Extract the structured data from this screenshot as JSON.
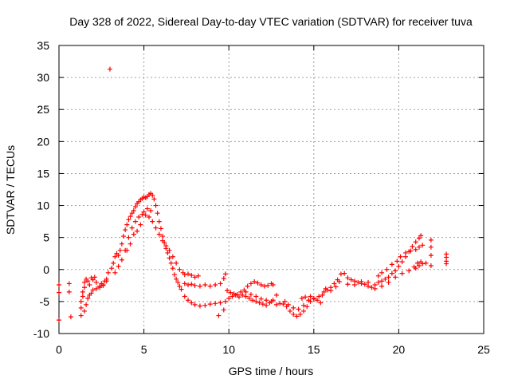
{
  "chart_data": {
    "type": "scatter",
    "title": "Day 328 of 2022, Sidereal Day-to-day VTEC variation (SDTVAR) for receiver tuva",
    "xlabel": "GPS time / hours",
    "ylabel": "SDTVAR / TECUs",
    "xlim": [
      0,
      25
    ],
    "ylim": [
      -10,
      35
    ],
    "xticks": [
      0,
      5,
      10,
      15,
      20,
      25
    ],
    "yticks": [
      -10,
      -5,
      0,
      5,
      10,
      15,
      20,
      25,
      30,
      35
    ],
    "grid": true,
    "marker": "+",
    "color": "#ff0000",
    "series": [
      {
        "name": "SDTVAR",
        "points": [
          [
            0.0,
            -2.4
          ],
          [
            0.0,
            -3.6
          ],
          [
            0.0,
            -7.9
          ],
          [
            0.6,
            -2.2
          ],
          [
            0.6,
            -3.5
          ],
          [
            0.7,
            -7.4
          ],
          [
            1.3,
            -7.2
          ],
          [
            1.3,
            -6.0
          ],
          [
            1.3,
            -5.0
          ],
          [
            1.4,
            -4.2
          ],
          [
            1.4,
            -3.5
          ],
          [
            1.5,
            -2.8
          ],
          [
            1.5,
            -2.0
          ],
          [
            1.6,
            -1.5
          ],
          [
            1.7,
            -1.8
          ],
          [
            1.8,
            -2.4
          ],
          [
            1.9,
            -1.3
          ],
          [
            2.0,
            -1.6
          ],
          [
            2.1,
            -1.2
          ],
          [
            2.2,
            -2.0
          ],
          [
            2.4,
            -2.6
          ],
          [
            2.5,
            -2.2
          ],
          [
            2.6,
            -2.5
          ],
          [
            2.7,
            -1.8
          ],
          [
            2.8,
            -1.5
          ],
          [
            2.9,
            -0.5
          ],
          [
            1.5,
            -6.5
          ],
          [
            1.6,
            -5.5
          ],
          [
            1.7,
            -4.5
          ],
          [
            1.8,
            -4.0
          ],
          [
            1.9,
            -3.7
          ],
          [
            2.0,
            -3.2
          ],
          [
            2.2,
            -3.0
          ],
          [
            2.4,
            -2.8
          ],
          [
            2.6,
            -2.4
          ],
          [
            2.8,
            -1.8
          ],
          [
            3.0,
            31.3
          ],
          [
            3.1,
            0.2
          ],
          [
            3.2,
            1.0
          ],
          [
            3.3,
            2.0
          ],
          [
            3.4,
            2.5
          ],
          [
            3.5,
            2.2
          ],
          [
            3.6,
            3.0
          ],
          [
            3.7,
            4.0
          ],
          [
            3.8,
            5.2
          ],
          [
            3.9,
            6.2
          ],
          [
            4.0,
            7.0
          ],
          [
            4.1,
            7.8
          ],
          [
            4.2,
            8.3
          ],
          [
            4.3,
            8.8
          ],
          [
            4.4,
            9.2
          ],
          [
            4.5,
            9.8
          ],
          [
            4.6,
            10.3
          ],
          [
            4.7,
            10.6
          ],
          [
            4.8,
            10.9
          ],
          [
            4.9,
            11.1
          ],
          [
            5.0,
            11.3
          ],
          [
            5.1,
            11.2
          ],
          [
            5.2,
            11.4
          ],
          [
            5.3,
            11.7
          ],
          [
            5.4,
            11.9
          ],
          [
            5.5,
            11.6
          ],
          [
            5.6,
            11.0
          ],
          [
            5.7,
            10.0
          ],
          [
            5.8,
            8.8
          ],
          [
            5.9,
            7.5
          ],
          [
            6.0,
            6.4
          ],
          [
            6.1,
            5.2
          ],
          [
            6.2,
            4.2
          ],
          [
            6.3,
            3.3
          ],
          [
            6.4,
            2.6
          ],
          [
            6.5,
            1.8
          ],
          [
            6.6,
            1.0
          ],
          [
            6.7,
            0.2
          ],
          [
            6.8,
            -0.8
          ],
          [
            6.9,
            -1.5
          ],
          [
            7.0,
            -2.0
          ],
          [
            7.1,
            -2.6
          ],
          [
            7.2,
            -3.1
          ],
          [
            3.3,
            -0.5
          ],
          [
            3.5,
            0.5
          ],
          [
            3.7,
            1.5
          ],
          [
            3.9,
            3.0
          ],
          [
            4.1,
            5.0
          ],
          [
            4.3,
            6.5
          ],
          [
            4.5,
            7.5
          ],
          [
            4.7,
            8.2
          ],
          [
            4.9,
            8.6
          ],
          [
            5.1,
            8.5
          ],
          [
            5.3,
            8.2
          ],
          [
            5.5,
            7.5
          ],
          [
            5.7,
            6.5
          ],
          [
            5.9,
            5.5
          ],
          [
            6.1,
            4.5
          ],
          [
            6.3,
            3.7
          ],
          [
            6.5,
            3.0
          ],
          [
            6.7,
            2.0
          ],
          [
            6.9,
            1.0
          ],
          [
            7.1,
            0.0
          ],
          [
            4.0,
            3.0
          ],
          [
            4.2,
            4.0
          ],
          [
            4.4,
            5.5
          ],
          [
            4.6,
            6.0
          ],
          [
            4.8,
            7.0
          ],
          [
            5.0,
            9.0
          ],
          [
            5.2,
            9.5
          ],
          [
            5.4,
            9.2
          ],
          [
            7.3,
            -0.5
          ],
          [
            7.4,
            -0.8
          ],
          [
            7.6,
            -0.7
          ],
          [
            7.8,
            -0.9
          ],
          [
            8.0,
            -1.2
          ],
          [
            8.2,
            -1.0
          ],
          [
            7.4,
            -2.2
          ],
          [
            7.6,
            -2.4
          ],
          [
            7.8,
            -2.3
          ],
          [
            8.0,
            -2.5
          ],
          [
            8.3,
            -2.6
          ],
          [
            8.6,
            -2.4
          ],
          [
            8.9,
            -2.6
          ],
          [
            9.2,
            -2.4
          ],
          [
            9.5,
            -2.2
          ],
          [
            9.7,
            -1.4
          ],
          [
            9.8,
            -0.7
          ],
          [
            7.4,
            -4.2
          ],
          [
            7.6,
            -4.8
          ],
          [
            7.8,
            -5.2
          ],
          [
            8.0,
            -5.5
          ],
          [
            8.3,
            -5.7
          ],
          [
            8.6,
            -5.6
          ],
          [
            8.9,
            -5.4
          ],
          [
            9.2,
            -5.3
          ],
          [
            9.5,
            -5.2
          ],
          [
            9.8,
            -5.0
          ],
          [
            9.4,
            -7.2
          ],
          [
            9.7,
            -6.3
          ],
          [
            9.9,
            -3.3
          ],
          [
            10.1,
            -3.6
          ],
          [
            10.3,
            -3.8
          ],
          [
            10.5,
            -3.9
          ],
          [
            10.7,
            -3.5
          ],
          [
            10.9,
            -3.2
          ],
          [
            11.1,
            -2.6
          ],
          [
            11.3,
            -2.2
          ],
          [
            11.5,
            -1.9
          ],
          [
            11.7,
            -2.1
          ],
          [
            11.9,
            -2.4
          ],
          [
            12.1,
            -2.6
          ],
          [
            12.3,
            -2.5
          ],
          [
            12.5,
            -2.2
          ],
          [
            12.6,
            -2.4
          ],
          [
            10.0,
            -4.5
          ],
          [
            10.2,
            -4.2
          ],
          [
            10.4,
            -4.0
          ],
          [
            10.6,
            -4.3
          ],
          [
            10.8,
            -4.0
          ],
          [
            11.0,
            -4.2
          ],
          [
            11.2,
            -4.5
          ],
          [
            11.4,
            -4.8
          ],
          [
            11.6,
            -5.0
          ],
          [
            11.8,
            -5.2
          ],
          [
            12.0,
            -5.4
          ],
          [
            12.2,
            -5.6
          ],
          [
            12.4,
            -5.2
          ],
          [
            12.6,
            -4.8
          ],
          [
            11.0,
            -3.5
          ],
          [
            11.3,
            -3.9
          ],
          [
            11.6,
            -4.2
          ],
          [
            11.9,
            -4.6
          ],
          [
            12.2,
            -4.8
          ],
          [
            12.5,
            -5.0
          ],
          [
            12.8,
            -5.5
          ],
          [
            12.8,
            -4.0
          ],
          [
            13.0,
            -5.3
          ],
          [
            13.2,
            -5.4
          ],
          [
            13.4,
            -5.8
          ],
          [
            13.6,
            -6.5
          ],
          [
            13.8,
            -7.0
          ],
          [
            14.0,
            -7.3
          ],
          [
            14.2,
            -7.0
          ],
          [
            14.4,
            -6.5
          ],
          [
            14.6,
            -5.8
          ],
          [
            14.8,
            -5.0
          ],
          [
            15.0,
            -4.5
          ],
          [
            15.2,
            -4.8
          ],
          [
            15.4,
            -5.2
          ],
          [
            13.3,
            -5.0
          ],
          [
            13.5,
            -5.5
          ],
          [
            13.8,
            -6.0
          ],
          [
            14.1,
            -6.2
          ],
          [
            14.4,
            -5.6
          ],
          [
            14.7,
            -4.8
          ],
          [
            14.3,
            -4.5
          ],
          [
            14.5,
            -4.3
          ],
          [
            14.8,
            -4.2
          ],
          [
            15.0,
            -4.6
          ],
          [
            15.3,
            -4.2
          ],
          [
            15.6,
            -3.5
          ],
          [
            15.8,
            -3.2
          ],
          [
            16.0,
            -2.8
          ],
          [
            16.2,
            -2.2
          ],
          [
            16.4,
            -1.6
          ],
          [
            16.6,
            -0.7
          ],
          [
            16.8,
            -0.6
          ],
          [
            17.0,
            -1.3
          ],
          [
            17.2,
            -1.6
          ],
          [
            17.4,
            -1.8
          ],
          [
            17.6,
            -2.0
          ],
          [
            17.8,
            -2.2
          ],
          [
            18.0,
            -2.3
          ],
          [
            18.2,
            -2.6
          ],
          [
            18.4,
            -2.8
          ],
          [
            18.6,
            -2.4
          ],
          [
            18.8,
            -2.0
          ],
          [
            19.0,
            -1.8
          ],
          [
            19.2,
            -1.5
          ],
          [
            19.4,
            -1.2
          ],
          [
            19.6,
            -0.6
          ],
          [
            19.8,
            -0.2
          ],
          [
            20.0,
            0.5
          ],
          [
            20.2,
            1.2
          ],
          [
            20.4,
            2.0
          ],
          [
            20.6,
            2.8
          ],
          [
            20.8,
            3.6
          ],
          [
            21.0,
            4.3
          ],
          [
            21.2,
            4.9
          ],
          [
            21.3,
            5.3
          ],
          [
            15.5,
            -4.0
          ],
          [
            15.7,
            -3.0
          ],
          [
            16.0,
            -3.3
          ],
          [
            16.3,
            -2.7
          ],
          [
            16.5,
            -1.9
          ],
          [
            17.0,
            -2.3
          ],
          [
            17.4,
            -2.4
          ],
          [
            17.8,
            -1.9
          ],
          [
            18.2,
            -2.0
          ],
          [
            18.6,
            -3.0
          ],
          [
            19.0,
            -2.6
          ],
          [
            19.4,
            -2.0
          ],
          [
            19.8,
            -1.2
          ],
          [
            20.2,
            -0.6
          ],
          [
            20.6,
            -0.2
          ],
          [
            20.9,
            0.4
          ],
          [
            21.1,
            1.0
          ],
          [
            21.3,
            1.2
          ],
          [
            18.8,
            -1.0
          ],
          [
            19.0,
            -0.5
          ],
          [
            19.3,
            0.0
          ],
          [
            19.6,
            0.8
          ],
          [
            19.9,
            1.3
          ],
          [
            20.1,
            2.0
          ],
          [
            20.4,
            2.6
          ],
          [
            20.7,
            2.9
          ],
          [
            21.0,
            3.1
          ],
          [
            21.2,
            3.5
          ],
          [
            21.4,
            3.8
          ],
          [
            21.0,
            0.2
          ],
          [
            21.2,
            0.6
          ],
          [
            21.4,
            0.9
          ],
          [
            21.6,
            1.0
          ],
          [
            21.9,
            4.6
          ],
          [
            21.9,
            3.5
          ],
          [
            21.9,
            2.2
          ],
          [
            21.9,
            0.6
          ],
          [
            22.8,
            2.4
          ],
          [
            22.8,
            1.9
          ],
          [
            22.8,
            1.3
          ],
          [
            22.8,
            0.9
          ]
        ]
      }
    ]
  }
}
